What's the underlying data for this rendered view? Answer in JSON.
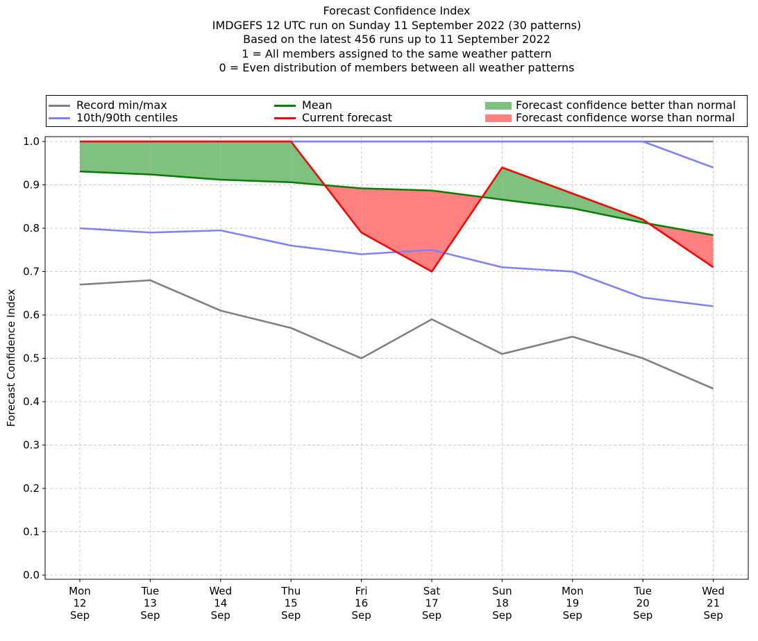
{
  "title_lines": [
    "Forecast Confidence Index",
    "IMDGEFS 12 UTC run on Sunday 11 September 2022 (30 patterns)",
    "Based on the latest 456 runs up to 11 September 2022",
    "1 = All members assigned to the same weather pattern",
    "0 = Even distribution of members between all weather patterns"
  ],
  "legend": {
    "record": "Record min/max",
    "centiles": "10th/90th centiles",
    "mean": "Mean",
    "current": "Current forecast",
    "better": "Forecast confidence better than normal",
    "worse": "Forecast confidence worse than normal"
  },
  "colors": {
    "record": "#808080",
    "centiles": "#8080ff",
    "mean": "#008000",
    "current": "#ff0000",
    "better_fill": "#80c080",
    "worse_fill": "#ff8080",
    "grid": "#cccccc"
  },
  "chart_data": {
    "type": "line",
    "ylabel": "Forecast Confidence Index",
    "xlabel": "",
    "ylim": [
      0.0,
      1.0
    ],
    "yticks": [
      "0.0",
      "0.1",
      "0.2",
      "0.3",
      "0.4",
      "0.5",
      "0.6",
      "0.7",
      "0.8",
      "0.9",
      "1.0"
    ],
    "grid": true,
    "legend_position": "top",
    "categories": [
      [
        "Mon",
        "12",
        "Sep"
      ],
      [
        "Tue",
        "13",
        "Sep"
      ],
      [
        "Wed",
        "14",
        "Sep"
      ],
      [
        "Thu",
        "15",
        "Sep"
      ],
      [
        "Fri",
        "16",
        "Sep"
      ],
      [
        "Sat",
        "17",
        "Sep"
      ],
      [
        "Sun",
        "18",
        "Sep"
      ],
      [
        "Mon",
        "19",
        "Sep"
      ],
      [
        "Tue",
        "20",
        "Sep"
      ],
      [
        "Wed",
        "21",
        "Sep"
      ]
    ],
    "series": [
      {
        "name": "Record min/max",
        "key": "record_max",
        "values": [
          1.0,
          1.0,
          1.0,
          1.0,
          1.0,
          1.0,
          1.0,
          1.0,
          1.0,
          1.0
        ]
      },
      {
        "name": "Record min/max",
        "key": "record_min",
        "values": [
          0.67,
          0.68,
          0.61,
          0.57,
          0.5,
          0.59,
          0.51,
          0.55,
          0.5,
          0.43
        ]
      },
      {
        "name": "10th/90th centiles",
        "key": "p90",
        "values": [
          1.0,
          1.0,
          1.0,
          1.0,
          1.0,
          1.0,
          1.0,
          1.0,
          1.0,
          0.94
        ]
      },
      {
        "name": "10th/90th centiles",
        "key": "p10",
        "values": [
          0.8,
          0.79,
          0.795,
          0.76,
          0.74,
          0.75,
          0.71,
          0.7,
          0.64,
          0.62
        ]
      },
      {
        "name": "Mean",
        "key": "mean",
        "values": [
          0.931,
          0.924,
          0.912,
          0.906,
          0.892,
          0.887,
          0.866,
          0.846,
          0.813,
          0.784
        ]
      },
      {
        "name": "Current forecast",
        "key": "current",
        "values": [
          1.0,
          1.0,
          1.0,
          1.0,
          0.79,
          0.7,
          0.94,
          0.88,
          0.82,
          0.71
        ]
      }
    ]
  }
}
